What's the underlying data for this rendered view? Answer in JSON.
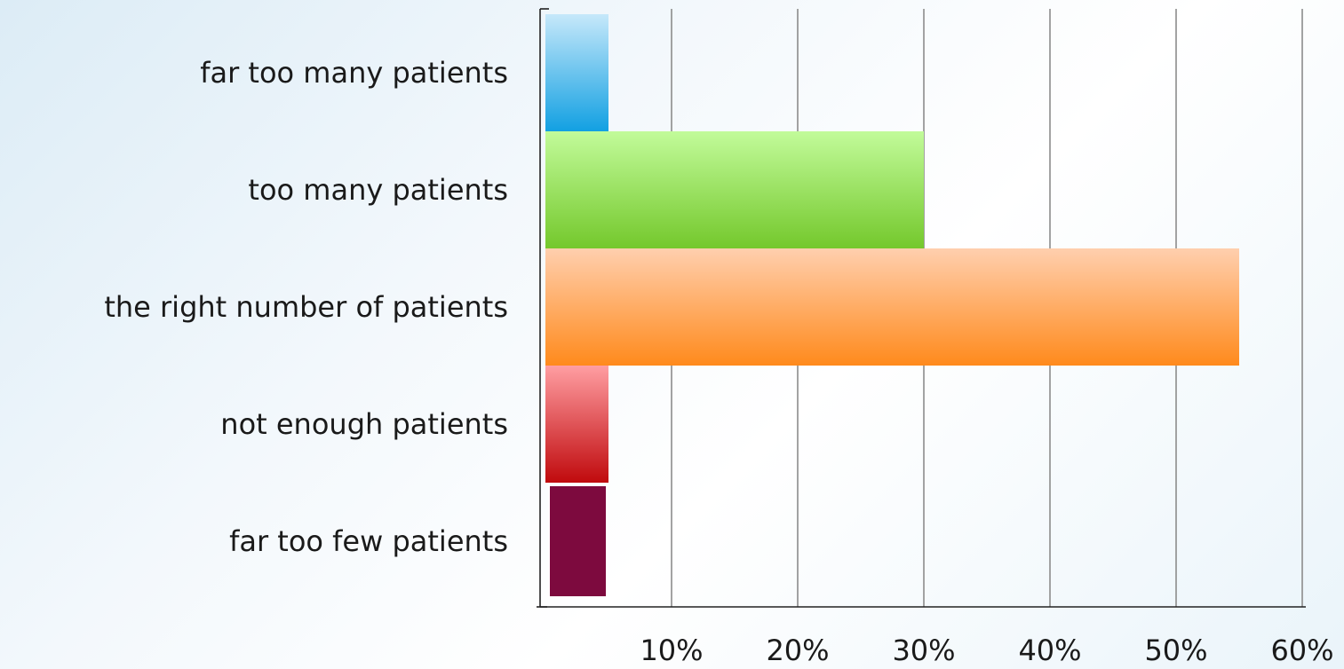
{
  "chart_data": {
    "type": "bar",
    "orientation": "horizontal",
    "title": "",
    "xlabel": "",
    "ylabel": "",
    "categories": [
      "far too many patients",
      "too many patients",
      "the right number of patients",
      "not enough patients",
      "far too few patients"
    ],
    "values": [
      5,
      30,
      55,
      5,
      5
    ],
    "value_unit": "%",
    "xlim": [
      0,
      60
    ],
    "x_ticks": [
      10,
      20,
      30,
      40,
      50,
      60
    ],
    "x_tick_labels": [
      "10%",
      "20%",
      "30%",
      "40%",
      "50%",
      "60%"
    ],
    "grid": "vertical",
    "legend": "none",
    "bar_colors": [
      {
        "top": "#c6e8fa",
        "bottom": "#12a0e2"
      },
      {
        "top": "#c2fb9a",
        "bottom": "#74c82c"
      },
      {
        "top": "#ffcfae",
        "bottom": "#ff8a1c"
      },
      {
        "top": "#ff9ea2",
        "bottom": "#c00a0d"
      },
      {
        "top": "#7d0a3e",
        "bottom": "#7d0a3e"
      }
    ]
  }
}
